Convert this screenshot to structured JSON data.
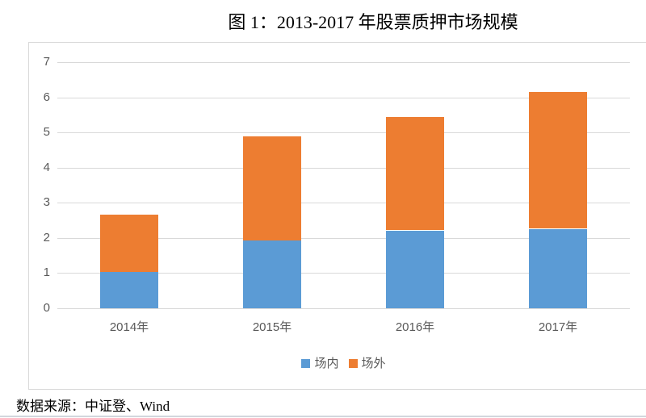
{
  "page": {
    "title": "图 1：2013-2017 年股票质押市场规模",
    "source_note": "数据来源：中证登、Wind"
  },
  "chart_data": {
    "type": "bar",
    "stacked": true,
    "title": "图 1：2013-2017 年股票质押市场规模",
    "categories": [
      "2014年",
      "2015年",
      "2016年",
      "2017年"
    ],
    "series": [
      {
        "name": "场内",
        "color": "#5B9BD5",
        "values": [
          1.03,
          1.95,
          2.21,
          2.26
        ]
      },
      {
        "name": "场外",
        "color": "#ED7D31",
        "values": [
          1.64,
          2.95,
          3.22,
          3.88
        ]
      }
    ],
    "stacked_totals": [
      2.67,
      4.9,
      5.43,
      6.14
    ],
    "xlabel": "",
    "ylabel": "",
    "ylim": [
      0,
      7
    ],
    "ytick_step": 1,
    "grid": true,
    "legend_position": "bottom-center",
    "legend": [
      "场内",
      "场外"
    ],
    "colors": {
      "grid": "#D9D9D9",
      "chart_border": "#D9D9D9",
      "axis_text": "#595959",
      "series_onexchange": "#5B9BD5",
      "series_offexchange": "#ED7D31"
    }
  }
}
